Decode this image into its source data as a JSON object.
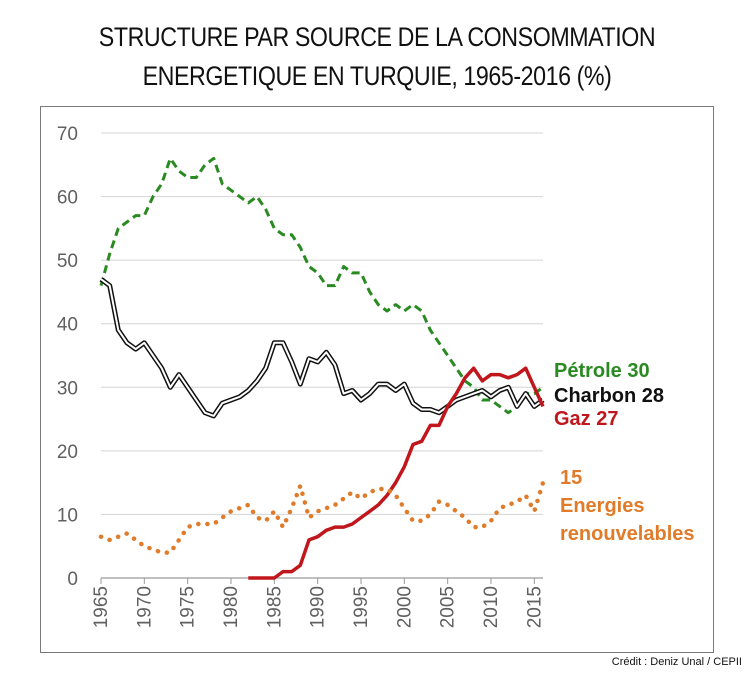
{
  "title_lines": [
    "STRUCTURE PAR SOURCE DE LA CONSOMMATION",
    "ENERGETIQUE EN TURQUIE, 1965-2016 (%)"
  ],
  "credit": "Crédit : Deniz Unal / CEPII",
  "chart_data": {
    "type": "line",
    "title": "STRUCTURE PAR SOURCE DE LA CONSOMMATION ENERGETIQUE EN TURQUIE, 1965-2016 (%)",
    "xlim": [
      1965,
      2016
    ],
    "ylim": [
      0,
      70
    ],
    "x_ticks": [
      1965,
      1970,
      1975,
      1980,
      1985,
      1990,
      1995,
      2000,
      2005,
      2010,
      2015
    ],
    "y_ticks": [
      0,
      10,
      20,
      30,
      40,
      50,
      60,
      70
    ],
    "grid": "horizontal",
    "series": [
      {
        "name": "Pétrole",
        "end_label": "Pétrole 30",
        "color": "#2a8a22",
        "style": "dashed",
        "x": [
          1965,
          1966,
          1967,
          1968,
          1969,
          1970,
          1971,
          1972,
          1973,
          1974,
          1975,
          1976,
          1977,
          1978,
          1979,
          1980,
          1981,
          1982,
          1983,
          1984,
          1985,
          1986,
          1987,
          1988,
          1989,
          1990,
          1991,
          1992,
          1993,
          1994,
          1995,
          1996,
          1997,
          1998,
          1999,
          2000,
          2001,
          2002,
          2003,
          2004,
          2005,
          2006,
          2007,
          2008,
          2009,
          2010,
          2011,
          2012,
          2013,
          2014,
          2015,
          2016
        ],
        "y": [
          46,
          51,
          55,
          56,
          57,
          57,
          60,
          62,
          66,
          64,
          63,
          63,
          65,
          66,
          62,
          61,
          60,
          59,
          60,
          58,
          55,
          54,
          54,
          52,
          49,
          48,
          46,
          46,
          49,
          48,
          48,
          45,
          43,
          42,
          43,
          42,
          43,
          42,
          39,
          37,
          35,
          33,
          31,
          30,
          28,
          28,
          27,
          26,
          27,
          29,
          29,
          30
        ]
      },
      {
        "name": "Charbon",
        "end_label": "Charbon 28",
        "color": "#111111",
        "style": "double",
        "x": [
          1965,
          1966,
          1967,
          1968,
          1969,
          1970,
          1971,
          1972,
          1973,
          1974,
          1975,
          1976,
          1977,
          1978,
          1979,
          1980,
          1981,
          1982,
          1983,
          1984,
          1985,
          1986,
          1987,
          1988,
          1989,
          1990,
          1991,
          1992,
          1993,
          1994,
          1995,
          1996,
          1997,
          1998,
          1999,
          2000,
          2001,
          2002,
          2003,
          2004,
          2005,
          2006,
          2007,
          2008,
          2009,
          2010,
          2011,
          2012,
          2013,
          2014,
          2015,
          2016
        ],
        "y": [
          47,
          46,
          39,
          37,
          36,
          37,
          35,
          33,
          30,
          32,
          30,
          28,
          26,
          25.5,
          27.5,
          28,
          28.5,
          29.5,
          31,
          33,
          37,
          37,
          34,
          30.5,
          34.5,
          34,
          35.5,
          33.5,
          29,
          29.5,
          28,
          29,
          30.5,
          30.5,
          29.5,
          30.5,
          27.5,
          26.5,
          26.5,
          26,
          27,
          28,
          28.5,
          29,
          29.5,
          28.5,
          29.5,
          30,
          27,
          29,
          27,
          28
        ]
      },
      {
        "name": "Gaz",
        "end_label": "Gaz 27",
        "color": "#c0161c",
        "style": "solid",
        "x": [
          1982,
          1983,
          1984,
          1985,
          1986,
          1987,
          1988,
          1989,
          1990,
          1991,
          1992,
          1993,
          1994,
          1995,
          1996,
          1997,
          1998,
          1999,
          2000,
          2001,
          2002,
          2003,
          2004,
          2005,
          2006,
          2007,
          2008,
          2009,
          2010,
          2011,
          2012,
          2013,
          2014,
          2015,
          2016
        ],
        "y": [
          0,
          0,
          0,
          0,
          1,
          1,
          2,
          6,
          6.5,
          7.5,
          8,
          8,
          8.5,
          9.5,
          10.5,
          11.5,
          13,
          15,
          17.5,
          21,
          21.5,
          24,
          24,
          27,
          29,
          31.5,
          33,
          31,
          32,
          32,
          31.5,
          32,
          33,
          30,
          27
        ]
      },
      {
        "name": "Energies renouvelables",
        "end_label_lines": [
          "15",
          "Energies",
          "renouvelables"
        ],
        "color": "#e07b29",
        "style": "dotted",
        "x": [
          1965,
          1966,
          1967,
          1968,
          1969,
          1970,
          1971,
          1972,
          1973,
          1974,
          1975,
          1976,
          1977,
          1978,
          1979,
          1980,
          1981,
          1982,
          1983,
          1984,
          1985,
          1986,
          1987,
          1988,
          1989,
          1990,
          1991,
          1992,
          1993,
          1994,
          1995,
          1996,
          1997,
          1998,
          1999,
          2000,
          2001,
          2002,
          2003,
          2004,
          2005,
          2006,
          2007,
          2008,
          2009,
          2010,
          2011,
          2012,
          2013,
          2014,
          2015,
          2016
        ],
        "y": [
          6.5,
          6,
          6.5,
          7,
          6,
          5,
          4.5,
          4,
          4,
          6,
          8,
          8.5,
          8.5,
          8.5,
          9.5,
          10.5,
          11,
          11.5,
          9.5,
          9,
          10.5,
          8,
          11,
          14.5,
          9.5,
          10.5,
          11,
          11.5,
          12.5,
          13.5,
          12.5,
          13.5,
          14,
          14,
          13,
          11,
          9,
          9,
          10,
          12,
          11.5,
          10.5,
          9.5,
          8,
          8,
          9,
          11,
          11.5,
          12,
          13,
          10.5,
          15
        ]
      }
    ]
  }
}
